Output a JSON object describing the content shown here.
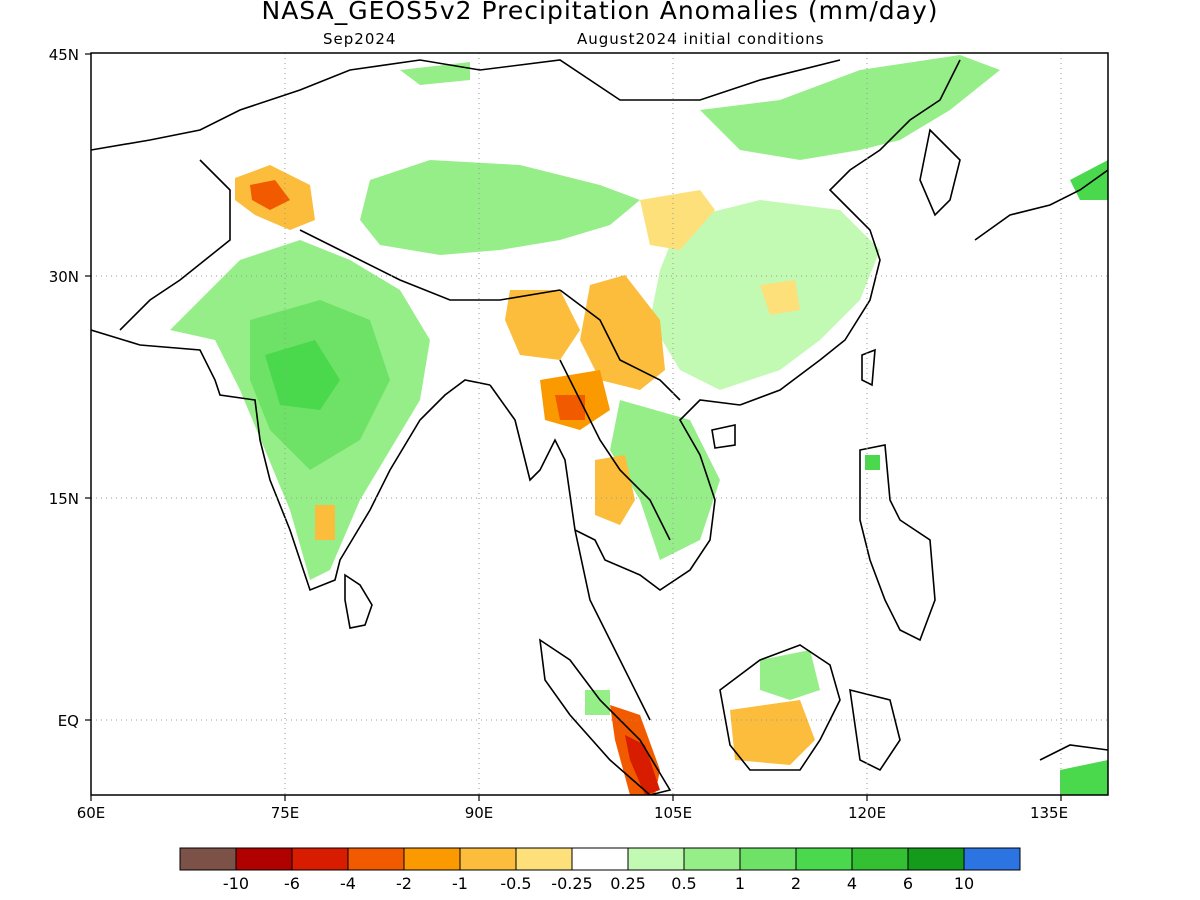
{
  "header": {
    "title": "NASA_GEOS5v2 Precipitation Anomalies (mm/day)",
    "valid_month": "Sep2024",
    "initial_conditions": "August2024 initial conditions"
  },
  "axes": {
    "lat_labels": [
      "45N",
      "30N",
      "15N",
      "EQ"
    ],
    "lon_labels": [
      "60E",
      "75E",
      "90E",
      "105E",
      "120E",
      "135E"
    ]
  },
  "colorbar": {
    "colors": [
      "#7b5148",
      "#b00000",
      "#d81c00",
      "#f25a00",
      "#fa9a00",
      "#fbbd3b",
      "#fde07a",
      "#ffffff",
      "#c2fab4",
      "#96ee88",
      "#6ee266",
      "#4ad84d",
      "#33c133",
      "#159b1c",
      "#2b74e2"
    ],
    "labels": [
      "-10",
      "-6",
      "-4",
      "-2",
      "-1",
      "-0.5",
      "-0.25",
      "0.25",
      "0.5",
      "1",
      "2",
      "4",
      "6",
      "10"
    ]
  }
}
